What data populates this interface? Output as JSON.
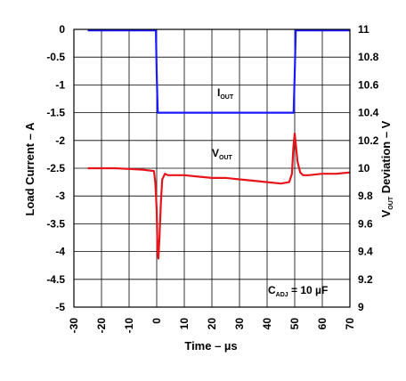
{
  "chart_data": {
    "type": "line",
    "xlabel": "Time – µs",
    "ylabel_left": "Load Current – A",
    "ylabel_right_main": "V",
    "ylabel_right_sub": "OUT",
    "ylabel_right_tail": " Deviation – V",
    "xlim": [
      -30,
      70
    ],
    "ylim_left": [
      -5,
      0
    ],
    "ylim_right": [
      9,
      11
    ],
    "x_ticks": [
      "-30",
      "-20",
      "-10",
      "0",
      "10",
      "20",
      "30",
      "40",
      "50",
      "60",
      "70"
    ],
    "y_left_ticks": [
      "0",
      "-0.5",
      "-1",
      "-1.5",
      "-2",
      "-2.5",
      "-3",
      "-3.5",
      "-4",
      "-4.5",
      "-5"
    ],
    "y_right_ticks": [
      "11",
      "10.8",
      "10.6",
      "10.4",
      "10.2",
      "10",
      "9.8",
      "9.6",
      "9.4",
      "9.2",
      "9"
    ],
    "grid": true,
    "colors": {
      "iout": "#1a1aff",
      "vout": "#e8141b",
      "grid": "#000000"
    },
    "series": [
      {
        "name": "IOUT",
        "axis": "left",
        "x": [
          -25,
          -0.3,
          0,
          0.4,
          49.6,
          50,
          50.4,
          70
        ],
        "y": [
          -0.02,
          -0.02,
          -0.8,
          -1.5,
          -1.5,
          -0.8,
          -0.02,
          -0.02
        ]
      },
      {
        "name": "VOUT",
        "axis": "right",
        "x": [
          -25,
          -20,
          -15,
          -10,
          -5,
          -1,
          -0.5,
          0,
          0.3,
          0.6,
          1,
          1.5,
          2,
          3,
          4,
          5,
          7,
          10,
          15,
          20,
          25,
          30,
          35,
          40,
          45,
          48,
          49,
          49.5,
          50,
          50.5,
          51,
          52,
          53,
          55,
          60,
          65,
          70
        ],
        "y": [
          10.0,
          10.0,
          10.0,
          9.995,
          9.99,
          9.98,
          9.9,
          9.7,
          9.4,
          9.35,
          9.5,
          9.75,
          9.92,
          9.96,
          9.95,
          9.95,
          9.95,
          9.95,
          9.94,
          9.93,
          9.93,
          9.92,
          9.91,
          9.9,
          9.89,
          9.9,
          9.96,
          10.15,
          10.25,
          10.15,
          10.05,
          9.97,
          9.95,
          9.95,
          9.96,
          9.96,
          9.97
        ]
      }
    ],
    "annotations": {
      "iout_main": "I",
      "iout_sub": "OUT",
      "vout_main": "V",
      "vout_sub": "OUT",
      "cadj_main": "C",
      "cadj_sub": "ADJ",
      "cadj_tail": " = 10 µF"
    }
  }
}
